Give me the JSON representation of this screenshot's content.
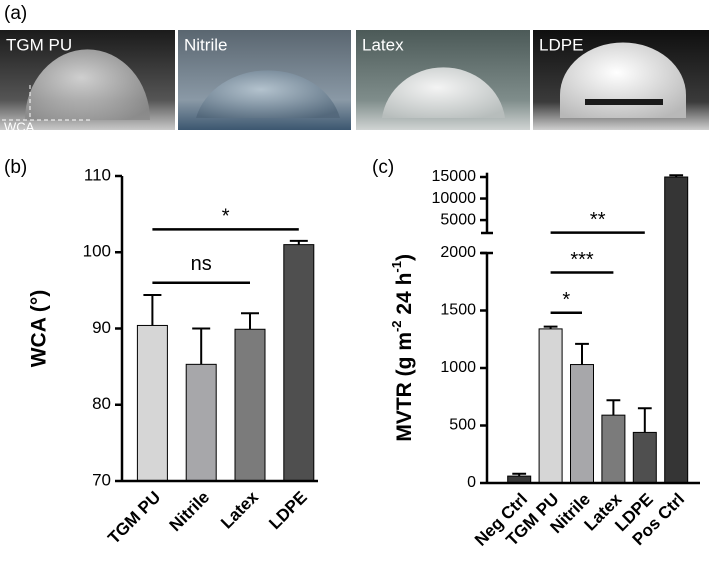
{
  "figure": {
    "panel_labels": [
      "(a)",
      "(b)",
      "(c)"
    ],
    "photos": [
      "TGM PU",
      "Nitrile",
      "Latex",
      "LDPE"
    ],
    "wca_label": "WCA"
  },
  "chart_data": [
    {
      "type": "bar",
      "ylabel": "WCA (°)",
      "categories": [
        "TGM PU",
        "Nitrile",
        "Latex",
        "LDPE"
      ],
      "values": [
        90.4,
        85.3,
        89.9,
        101
      ],
      "errors": [
        4,
        4.7,
        2.1,
        0.5
      ],
      "colors": [
        "#d6d6d6",
        "#a7a7aa",
        "#7b7b7b",
        "#4f4f4f"
      ],
      "ylim": [
        70,
        110
      ],
      "yticks": [
        70,
        80,
        90,
        100,
        110
      ],
      "annotations": [
        {
          "text": "ns",
          "x": [
            0,
            2
          ],
          "y": 96
        },
        {
          "text": "*",
          "x": [
            0,
            3
          ],
          "y": 103
        }
      ]
    },
    {
      "type": "broken_bar",
      "ylabel": [
        "MVTR (g m",
        "-2",
        " 24 h",
        "-1",
        ")"
      ],
      "categories": [
        "Neg Ctrl",
        "TGM PU",
        "Nitrile",
        "Latex",
        "LDPE",
        "Pos Ctrl"
      ],
      "values": [
        60,
        1340,
        1030,
        590,
        440,
        15000
      ],
      "errors": [
        20,
        20,
        180,
        130,
        210,
        400
      ],
      "colors": [
        "#3a3a3a",
        "#d6d6d6",
        "#a7a7aa",
        "#7b7b7b",
        "#4f4f4f",
        "#353535"
      ],
      "ylim": [
        0,
        2000
      ],
      "yticks": [
        0,
        500,
        1000,
        1500,
        2000
      ],
      "y2lim": [
        2000,
        16000
      ],
      "y2ticks": [
        5000,
        10000,
        15000
      ],
      "annotations": [
        {
          "text": "*",
          "x": [
            1,
            2
          ],
          "y": 1480
        },
        {
          "text": "***",
          "x": [
            1,
            3
          ],
          "y": 1830
        },
        {
          "text": "**",
          "x": [
            1,
            4
          ],
          "y": 2100
        }
      ]
    }
  ]
}
